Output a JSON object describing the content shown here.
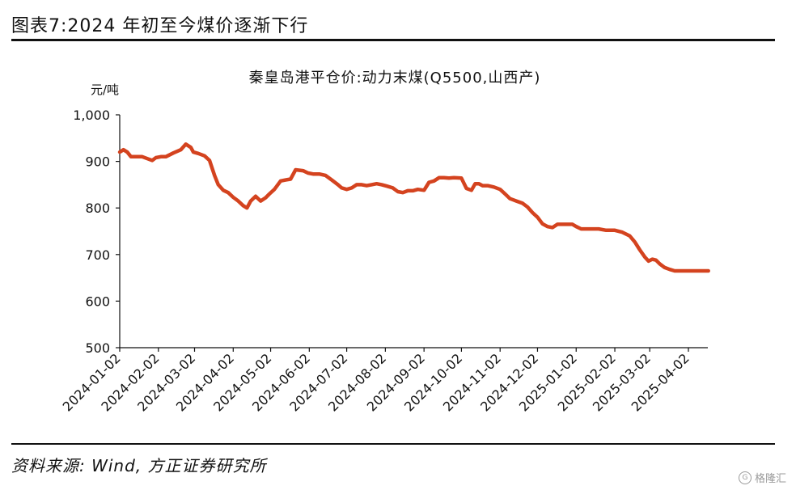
{
  "figure_title": "图表7:2024 年初至今煤价逐渐下行",
  "source_note": "资料来源: Wind, 方正证券研究所",
  "watermark": "格隆汇",
  "watermark_logo": "G",
  "line_color": "#d4431f",
  "chart_data": {
    "type": "line",
    "title": "秦皇岛港平仓价:动力末煤(Q5500,山西产)",
    "ylabel": "元/吨",
    "xlabel": "",
    "ylim": [
      500,
      1000
    ],
    "yticks": [
      500,
      600,
      700,
      800,
      900,
      1000
    ],
    "ytick_labels": [
      "500",
      "600",
      "700",
      "800",
      "900",
      "1,000"
    ],
    "xtick_labels": [
      "2024-01-02",
      "2024-02-02",
      "2024-03-02",
      "2024-04-02",
      "2024-05-02",
      "2024-06-02",
      "2024-07-02",
      "2024-08-02",
      "2024-09-02",
      "2024-10-02",
      "2024-11-02",
      "2024-12-02",
      "2025-01-02",
      "2025-02-02",
      "2025-03-02",
      "2025-04-02"
    ],
    "grid": false,
    "legend": "none",
    "series": [
      {
        "x": [
          "2024-01-02",
          "2024-01-05",
          "2024-01-08",
          "2024-01-11",
          "2024-01-15",
          "2024-01-20",
          "2024-01-25",
          "2024-01-28",
          "2024-01-31",
          "2024-02-04",
          "2024-02-08",
          "2024-02-14",
          "2024-02-20",
          "2024-02-24",
          "2024-02-28",
          "2024-03-01",
          "2024-03-05",
          "2024-03-10",
          "2024-03-14",
          "2024-03-18",
          "2024-03-21",
          "2024-03-25",
          "2024-03-29",
          "2024-04-02",
          "2024-04-06",
          "2024-04-10",
          "2024-04-13",
          "2024-04-16",
          "2024-04-20",
          "2024-04-24",
          "2024-04-28",
          "2024-05-01",
          "2024-05-05",
          "2024-05-10",
          "2024-05-14",
          "2024-05-18",
          "2024-05-22",
          "2024-05-28",
          "2024-06-01",
          "2024-06-05",
          "2024-06-10",
          "2024-06-15",
          "2024-06-20",
          "2024-06-25",
          "2024-06-28",
          "2024-07-02",
          "2024-07-06",
          "2024-07-10",
          "2024-07-14",
          "2024-07-18",
          "2024-07-22",
          "2024-07-26",
          "2024-07-30",
          "2024-08-03",
          "2024-08-08",
          "2024-08-12",
          "2024-08-16",
          "2024-08-20",
          "2024-08-24",
          "2024-08-28",
          "2024-09-02",
          "2024-09-06",
          "2024-09-10",
          "2024-09-14",
          "2024-09-18",
          "2024-09-22",
          "2024-09-26",
          "2024-10-02",
          "2024-10-06",
          "2024-10-10",
          "2024-10-13",
          "2024-10-16",
          "2024-10-19",
          "2024-10-23",
          "2024-10-28",
          "2024-11-02",
          "2024-11-06",
          "2024-11-10",
          "2024-11-15",
          "2024-11-20",
          "2024-11-24",
          "2024-11-28",
          "2024-12-02",
          "2024-12-06",
          "2024-12-10",
          "2024-12-14",
          "2024-12-18",
          "2024-12-22",
          "2024-12-26",
          "2024-12-30",
          "2025-01-02",
          "2025-01-06",
          "2025-01-10",
          "2025-01-15",
          "2025-01-20",
          "2025-01-26",
          "2025-02-02",
          "2025-02-08",
          "2025-02-14",
          "2025-02-18",
          "2025-02-22",
          "2025-02-26",
          "2025-03-01",
          "2025-03-04",
          "2025-03-07",
          "2025-03-10",
          "2025-03-14",
          "2025-03-18",
          "2025-03-22",
          "2025-03-26",
          "2025-03-30",
          "2025-04-02",
          "2025-04-06",
          "2025-04-10",
          "2025-04-14",
          "2025-04-18"
        ],
        "values": [
          920,
          925,
          920,
          910,
          910,
          910,
          905,
          902,
          908,
          910,
          910,
          918,
          925,
          937,
          930,
          920,
          917,
          912,
          902,
          870,
          850,
          838,
          833,
          823,
          815,
          805,
          800,
          815,
          825,
          815,
          822,
          830,
          840,
          858,
          860,
          862,
          882,
          880,
          875,
          873,
          873,
          870,
          860,
          850,
          843,
          840,
          843,
          850,
          850,
          848,
          850,
          852,
          850,
          847,
          843,
          835,
          833,
          837,
          837,
          840,
          838,
          855,
          858,
          865,
          865,
          864,
          865,
          864,
          842,
          838,
          852,
          852,
          848,
          848,
          845,
          840,
          830,
          820,
          815,
          810,
          802,
          790,
          780,
          766,
          760,
          758,
          765,
          765,
          765,
          765,
          760,
          755,
          755,
          755,
          755,
          752,
          752,
          748,
          740,
          727,
          710,
          695,
          686,
          690,
          688,
          680,
          672,
          668,
          665,
          665,
          665,
          665,
          665,
          665,
          665,
          665
        ]
      }
    ]
  }
}
